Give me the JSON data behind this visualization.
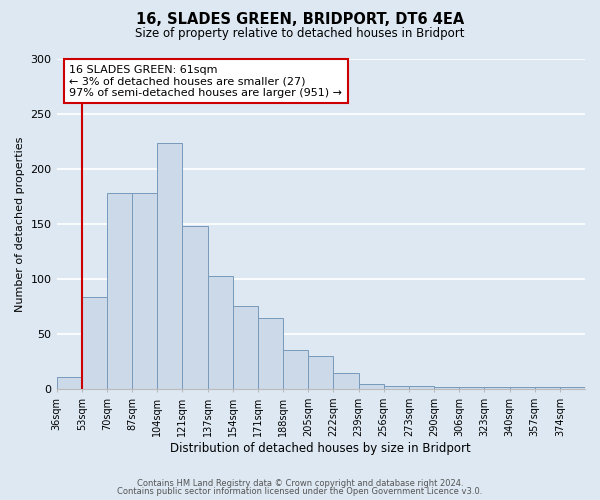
{
  "title": "16, SLADES GREEN, BRIDPORT, DT6 4EA",
  "subtitle": "Size of property relative to detached houses in Bridport",
  "xlabel": "Distribution of detached houses by size in Bridport",
  "ylabel": "Number of detached properties",
  "bin_labels": [
    "36sqm",
    "53sqm",
    "70sqm",
    "87sqm",
    "104sqm",
    "121sqm",
    "137sqm",
    "154sqm",
    "171sqm",
    "188sqm",
    "205sqm",
    "222sqm",
    "239sqm",
    "256sqm",
    "273sqm",
    "290sqm",
    "306sqm",
    "323sqm",
    "340sqm",
    "357sqm",
    "374sqm"
  ],
  "bar_heights": [
    11,
    84,
    178,
    178,
    224,
    148,
    103,
    76,
    65,
    36,
    30,
    15,
    5,
    3,
    3,
    2,
    2,
    2,
    2,
    2,
    2
  ],
  "bar_color": "#ccd9e8",
  "bar_edge_color": "#7799bb",
  "red_line_x": 1.0,
  "annotation_line1": "16 SLADES GREEN: 61sqm",
  "annotation_line2": "← 3% of detached houses are smaller (27)",
  "annotation_line3": "97% of semi-detached houses are larger (951) →",
  "annotation_box_color": "#ffffff",
  "annotation_box_edge": "#cc0000",
  "ylim": [
    0,
    300
  ],
  "yticks": [
    0,
    50,
    100,
    150,
    200,
    250,
    300
  ],
  "footer1": "Contains HM Land Registry data © Crown copyright and database right 2024.",
  "footer2": "Contains public sector information licensed under the Open Government Licence v3.0.",
  "bg_color": "#dde8f2",
  "plot_bg_color": "#dde8f2"
}
